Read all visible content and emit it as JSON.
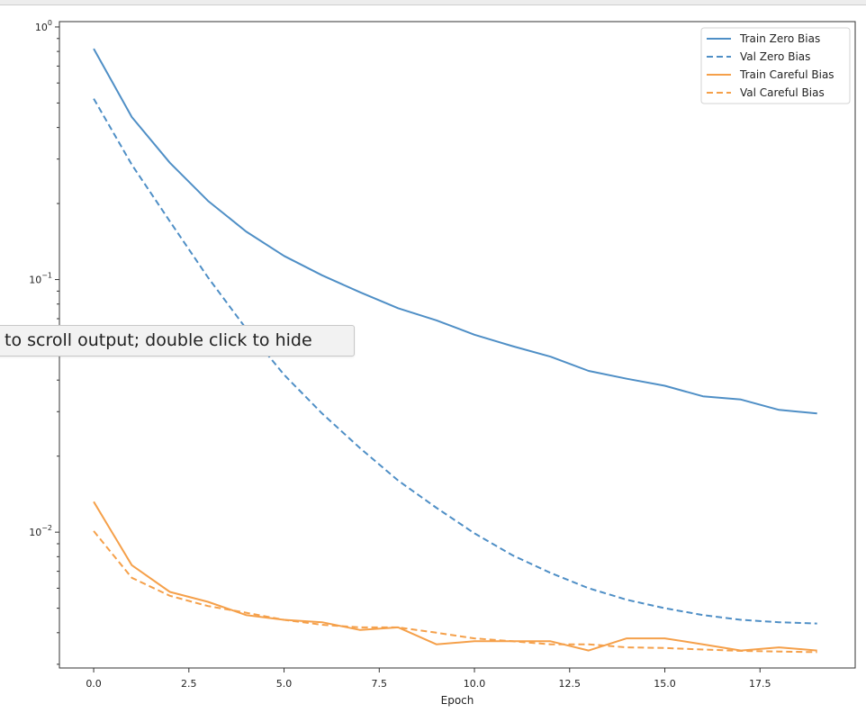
{
  "tooltip": {
    "text": "to scroll output; double click to hide"
  },
  "colors": {
    "blue": "#4f8fc6",
    "orange": "#f5a04a"
  },
  "chart_data": {
    "type": "line",
    "xlabel": "Epoch",
    "ylabel": "",
    "title": "",
    "xlim": [
      -0.9,
      20.0
    ],
    "ylim": [
      0.0029,
      1.05
    ],
    "yscale": "log",
    "x_ticks": [
      0.0,
      2.5,
      5.0,
      7.5,
      10.0,
      12.5,
      15.0,
      17.5
    ],
    "x_tick_labels": [
      "0.0",
      "2.5",
      "5.0",
      "7.5",
      "10.0",
      "12.5",
      "15.0",
      "17.5"
    ],
    "y_major_ticks": [
      1.0,
      0.1,
      0.01
    ],
    "y_tick_labels": [
      {
        "base": "10",
        "exp": "0"
      },
      {
        "base": "10",
        "exp": "−1"
      },
      {
        "base": "10",
        "exp": "−2"
      }
    ],
    "grid": false,
    "legend_position": "top-right",
    "x": [
      0,
      1,
      2,
      3,
      4,
      5,
      6,
      7,
      8,
      9,
      10,
      11,
      12,
      13,
      14,
      15,
      16,
      17,
      18,
      19
    ],
    "series": [
      {
        "name": "Train Zero Bias",
        "color": "#4f8fc6",
        "style": "solid",
        "values": [
          0.82,
          0.44,
          0.29,
          0.205,
          0.155,
          0.124,
          0.104,
          0.089,
          0.077,
          0.069,
          0.0605,
          0.0545,
          0.0495,
          0.0435,
          0.0405,
          0.038,
          0.0345,
          0.0335,
          0.0305,
          0.0295
        ]
      },
      {
        "name": "Val Zero Bias",
        "color": "#4f8fc6",
        "style": "dashed",
        "values": [
          0.52,
          0.285,
          0.17,
          0.102,
          0.064,
          0.042,
          0.0295,
          0.0215,
          0.016,
          0.0125,
          0.0099,
          0.0081,
          0.0069,
          0.006,
          0.0054,
          0.005,
          0.0047,
          0.0045,
          0.0044,
          0.00435
        ]
      },
      {
        "name": "Train Careful Bias",
        "color": "#f5a04a",
        "style": "solid",
        "values": [
          0.0132,
          0.0074,
          0.0058,
          0.0053,
          0.0047,
          0.0045,
          0.0044,
          0.0041,
          0.0042,
          0.0036,
          0.0037,
          0.0037,
          0.0037,
          0.0034,
          0.0038,
          0.0038,
          0.0036,
          0.0034,
          0.0035,
          0.0034
        ]
      },
      {
        "name": "Val Careful Bias",
        "color": "#f5a04a",
        "style": "dashed",
        "values": [
          0.0101,
          0.0066,
          0.0056,
          0.0051,
          0.0048,
          0.0045,
          0.0043,
          0.0042,
          0.0042,
          0.004,
          0.0038,
          0.0037,
          0.0036,
          0.0036,
          0.0035,
          0.00348,
          0.00343,
          0.00339,
          0.00337,
          0.00335
        ]
      }
    ]
  }
}
